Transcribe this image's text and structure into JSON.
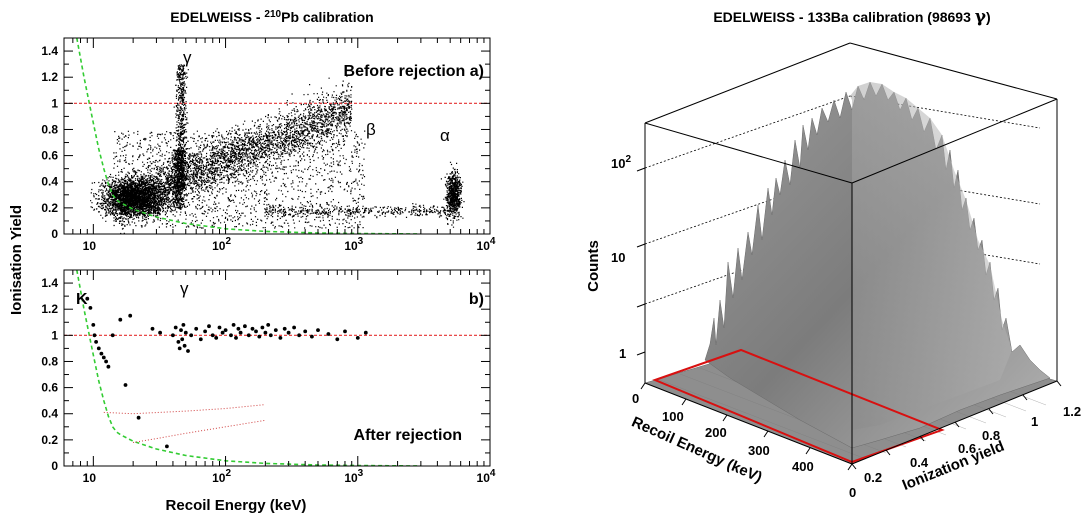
{
  "chart_data": [
    {
      "type": "scatter",
      "title_prefix": "EDELWEISS - ",
      "title_isotope_mass": "210",
      "title_suffix": "Pb calibration",
      "panel_a_label": "Before rejection a)",
      "panel_b_label": "b)",
      "panel_b_bottom_label": "After rejection",
      "ylabel": "Ionisation Yield",
      "xlabel": "Recoil Energy (keV)",
      "xscale": "log",
      "xlim": [
        6,
        10000
      ],
      "ylim": [
        0,
        1.5
      ],
      "yticks": [
        "0",
        "0.2",
        "0.4",
        "0.6",
        "0.8",
        "1",
        "1.2",
        "1.4"
      ],
      "xtick_labels": [
        "10",
        "10",
        "10",
        "10"
      ],
      "xtick_exponents": [
        "",
        "2",
        "3",
        "4"
      ],
      "greek_labels": {
        "gamma": "γ",
        "beta": "β",
        "alpha": "α"
      },
      "k_label": "K",
      "reference_line_y": 1,
      "panel_b_points": [
        {
          "x": 9.0,
          "y": 1.28
        },
        {
          "x": 9.5,
          "y": 1.21
        },
        {
          "x": 10.0,
          "y": 1.08
        },
        {
          "x": 10.2,
          "y": 1.0
        },
        {
          "x": 10.5,
          "y": 0.95
        },
        {
          "x": 11.0,
          "y": 0.9
        },
        {
          "x": 11.5,
          "y": 0.86
        },
        {
          "x": 12.0,
          "y": 0.83
        },
        {
          "x": 12.5,
          "y": 0.8
        },
        {
          "x": 13.0,
          "y": 0.76
        },
        {
          "x": 14.0,
          "y": 1.0
        },
        {
          "x": 16.0,
          "y": 1.12
        },
        {
          "x": 17.5,
          "y": 0.62
        },
        {
          "x": 19.0,
          "y": 1.15
        },
        {
          "x": 22.0,
          "y": 0.37
        },
        {
          "x": 28.0,
          "y": 1.05
        },
        {
          "x": 32.0,
          "y": 1.02
        },
        {
          "x": 36.0,
          "y": 0.15
        },
        {
          "x": 40.0,
          "y": 1.0
        },
        {
          "x": 42.0,
          "y": 1.06
        },
        {
          "x": 44.0,
          "y": 0.95
        },
        {
          "x": 45.0,
          "y": 0.9
        },
        {
          "x": 46.0,
          "y": 1.04
        },
        {
          "x": 47.0,
          "y": 0.97
        },
        {
          "x": 48.0,
          "y": 1.08
        },
        {
          "x": 49.0,
          "y": 0.92
        },
        {
          "x": 50.0,
          "y": 1.02
        },
        {
          "x": 52.0,
          "y": 0.88
        },
        {
          "x": 55.0,
          "y": 1.0
        },
        {
          "x": 60.0,
          "y": 1.05
        },
        {
          "x": 65.0,
          "y": 0.97
        },
        {
          "x": 70.0,
          "y": 1.03
        },
        {
          "x": 75.0,
          "y": 1.07
        },
        {
          "x": 80.0,
          "y": 1.0
        },
        {
          "x": 85.0,
          "y": 0.98
        },
        {
          "x": 90.0,
          "y": 1.06
        },
        {
          "x": 95.0,
          "y": 1.02
        },
        {
          "x": 100.0,
          "y": 1.04
        },
        {
          "x": 110.0,
          "y": 1.0
        },
        {
          "x": 115.0,
          "y": 1.08
        },
        {
          "x": 120.0,
          "y": 0.98
        },
        {
          "x": 125.0,
          "y": 1.05
        },
        {
          "x": 130.0,
          "y": 1.02
        },
        {
          "x": 140.0,
          "y": 1.07
        },
        {
          "x": 150.0,
          "y": 1.0
        },
        {
          "x": 160.0,
          "y": 1.05
        },
        {
          "x": 170.0,
          "y": 1.03
        },
        {
          "x": 180.0,
          "y": 0.99
        },
        {
          "x": 190.0,
          "y": 1.06
        },
        {
          "x": 200.0,
          "y": 1.02
        },
        {
          "x": 210.0,
          "y": 1.08
        },
        {
          "x": 220.0,
          "y": 1.0
        },
        {
          "x": 240.0,
          "y": 1.04
        },
        {
          "x": 260.0,
          "y": 0.98
        },
        {
          "x": 280.0,
          "y": 1.05
        },
        {
          "x": 300.0,
          "y": 1.02
        },
        {
          "x": 330.0,
          "y": 1.06
        },
        {
          "x": 360.0,
          "y": 1.0
        },
        {
          "x": 400.0,
          "y": 1.03
        },
        {
          "x": 450.0,
          "y": 0.99
        },
        {
          "x": 500.0,
          "y": 1.04
        },
        {
          "x": 600.0,
          "y": 1.01
        },
        {
          "x": 700.0,
          "y": 0.97
        },
        {
          "x": 800.0,
          "y": 1.03
        },
        {
          "x": 1000.0,
          "y": 0.98
        },
        {
          "x": 1150.0,
          "y": 1.02
        }
      ],
      "threshold_curve": [
        {
          "x": 7.5,
          "y": 1.5
        },
        {
          "x": 8.5,
          "y": 1.2
        },
        {
          "x": 10.0,
          "y": 0.85
        },
        {
          "x": 11.0,
          "y": 0.65
        },
        {
          "x": 12.0,
          "y": 0.5
        },
        {
          "x": 13.0,
          "y": 0.38
        },
        {
          "x": 14.0,
          "y": 0.3
        },
        {
          "x": 15.0,
          "y": 0.26
        },
        {
          "x": 16.0,
          "y": 0.24
        },
        {
          "x": 20.0,
          "y": 0.19
        },
        {
          "x": 30.0,
          "y": 0.13
        },
        {
          "x": 50.0,
          "y": 0.08
        },
        {
          "x": 100.0,
          "y": 0.04
        },
        {
          "x": 200.0,
          "y": 0.02
        },
        {
          "x": 500.0,
          "y": 0.008
        },
        {
          "x": 1000.0,
          "y": 0.004
        },
        {
          "x": 3000.0,
          "y": 0.0
        }
      ],
      "nuclear_band_upper": [
        {
          "x": 12,
          "y": 0.41
        },
        {
          "x": 20,
          "y": 0.4
        },
        {
          "x": 50,
          "y": 0.42
        },
        {
          "x": 100,
          "y": 0.44
        },
        {
          "x": 200,
          "y": 0.47
        }
      ],
      "nuclear_band_lower": [
        {
          "x": 20,
          "y": 0.18
        },
        {
          "x": 30,
          "y": 0.21
        },
        {
          "x": 50,
          "y": 0.25
        },
        {
          "x": 100,
          "y": 0.3
        },
        {
          "x": 200,
          "y": 0.35
        }
      ]
    },
    {
      "type": "surface",
      "title": "EDELWEISS - 133Ba calibration  (98693 ",
      "title_gamma": "γ",
      "title_close": ")",
      "zlabel": "Counts",
      "xlabel": "Recoil Energy (keV)",
      "ylabel": "Ionization yield",
      "zscale": "log",
      "zlim": [
        0.5,
        300
      ],
      "z_ticks": [
        "1",
        "10",
        "10"
      ],
      "z_tick_exponent": "2",
      "x_ticks": [
        "0",
        "100",
        "200",
        "300",
        "400"
      ],
      "y_ticks": [
        "0",
        "0.2",
        "0.4",
        "0.6",
        "0.8",
        "1",
        "1.2"
      ],
      "red_region": {
        "energy_max": 500,
        "yield_max": 0.4
      }
    }
  ]
}
